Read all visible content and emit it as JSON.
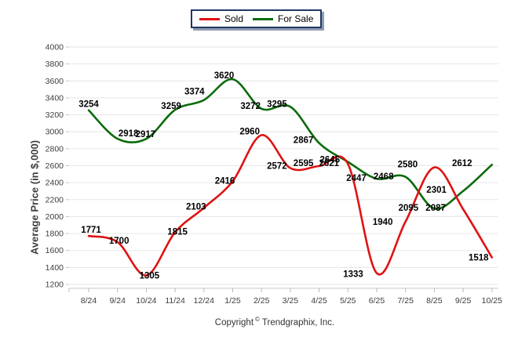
{
  "legend": {
    "items": [
      {
        "label": "Sold",
        "color": "#e01212"
      },
      {
        "label": "For Sale",
        "color": "#0b6b0b"
      }
    ]
  },
  "y_axis": {
    "ticks": [
      4000,
      3800,
      3600,
      3400,
      3200,
      3000,
      2800,
      2600,
      2400,
      2200,
      2000,
      1800,
      1600,
      1400,
      1200
    ]
  },
  "footer": {
    "prefix": "Copyright",
    "symbol": "©",
    "company": "Trendgraphix, Inc."
  },
  "chart_data": {
    "type": "line",
    "categories": [
      "8/24",
      "9/24",
      "10/24",
      "11/24",
      "12/24",
      "1/25",
      "2/25",
      "3/25",
      "4/25",
      "5/25",
      "6/25",
      "7/25",
      "8/25",
      "9/25",
      "10/25"
    ],
    "series": [
      {
        "name": "Sold",
        "color": "#e01212",
        "values": [
          1771,
          1700,
          1305,
          1815,
          2103,
          2416,
          2960,
          2572,
          2595,
          2621,
          1333,
          1940,
          2580,
          2087,
          1518
        ]
      },
      {
        "name": "For Sale",
        "color": "#0b6b0b",
        "values": [
          3254,
          2918,
          2917,
          3259,
          3374,
          3620,
          3272,
          3295,
          2867,
          2645,
          2447,
          2468,
          2095,
          2301,
          2612
        ]
      }
    ],
    "ylabel": "Average Price (in $,000)",
    "ylim": [
      1200,
      4000
    ],
    "y_tick_step": 200,
    "grid": "horizontal",
    "legend_position": "top-center",
    "data_labels": true,
    "line_style": "smooth"
  }
}
